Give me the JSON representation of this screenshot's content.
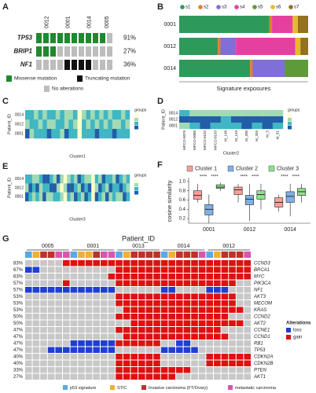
{
  "chart_data": [
    {
      "type": "mutation-grid",
      "label": "A",
      "column_groups": [
        "0012",
        "0001",
        "0014",
        "0005"
      ],
      "group_sizes": [
        3,
        3,
        3,
        2
      ],
      "genes": [
        "TP53",
        "BRIP1",
        "NF1"
      ],
      "values": [
        91,
        27,
        36
      ],
      "value_labels": [
        "91%",
        "27%",
        "36%"
      ],
      "matrix": [
        [
          1,
          1,
          1,
          1,
          1,
          1,
          1,
          1,
          1,
          1,
          0
        ],
        [
          1,
          1,
          1,
          0,
          0,
          0,
          0,
          0,
          0,
          0,
          0
        ],
        [
          0,
          0,
          0,
          0,
          2,
          2,
          2,
          2,
          0,
          0,
          0
        ]
      ],
      "legend": [
        "Missense mutation",
        "Truncating mutation",
        "No alterations"
      ],
      "colors": [
        "#bdbdbd",
        "#1e8a2e",
        "#111111"
      ]
    },
    {
      "type": "stacked-bar-h",
      "label": "B",
      "categories": [
        "0001",
        "0012",
        "0014"
      ],
      "series": [
        {
          "name": "s1",
          "color": "#2e9a5a",
          "values": [
            0.7,
            0.3,
            0.55
          ]
        },
        {
          "name": "s2",
          "color": "#e0802a",
          "values": [
            0.02,
            0.02,
            0.02
          ]
        },
        {
          "name": "s3",
          "color": "#7f6fd6",
          "values": [
            0,
            0.12,
            0.25
          ]
        },
        {
          "name": "s4",
          "color": "#e53fa0",
          "values": [
            0.16,
            0.46,
            0
          ]
        },
        {
          "name": "s5",
          "color": "#5e9a3a",
          "values": [
            0,
            0,
            0.18
          ]
        },
        {
          "name": "s6",
          "color": "#e8b92e",
          "values": [
            0.04,
            0.04,
            0
          ]
        },
        {
          "name": "s7",
          "color": "#94701f",
          "values": [
            0.08,
            0.06,
            0
          ]
        }
      ],
      "xlabel": "Signature exposures",
      "xlim": [
        0,
        1
      ]
    },
    {
      "type": "heatmap",
      "label": "C",
      "rows": [
        "0014",
        "0012",
        "0001"
      ],
      "ylabel": "Patient_ID",
      "xlabel": "Cluster1",
      "legend_title": "groups",
      "colors": [
        "#ffffcc",
        "#a1dab4",
        "#41b6c4",
        "#225ea8"
      ],
      "values": [
        [
          3,
          3,
          2,
          3,
          2,
          3,
          3,
          2,
          3,
          2,
          2,
          3,
          1,
          2,
          3,
          2,
          3,
          2,
          3,
          2,
          3,
          3,
          2,
          3
        ],
        [
          2,
          3,
          3,
          2,
          3,
          2,
          2,
          3,
          3,
          2,
          3,
          2,
          1,
          3,
          2,
          3,
          2,
          3,
          2,
          3,
          2,
          2,
          3,
          2
        ],
        [
          4,
          2,
          3,
          3,
          3,
          4,
          3,
          3,
          2,
          4,
          3,
          3,
          1,
          3,
          3,
          3,
          4,
          3,
          3,
          3,
          4,
          3,
          3,
          3
        ]
      ]
    },
    {
      "type": "heatmap",
      "label": "D",
      "rows": [
        "0014",
        "0012",
        "0001"
      ],
      "columns": [
        "MPCO-0079",
        "MPCO-0080",
        "MPCO-0102",
        "MPCO-0103",
        "M_148",
        "M_149",
        "M_200",
        "M_203",
        "M_5",
        "M_81"
      ],
      "ylabel": "Patient_ID",
      "xlabel": "Cluster2",
      "legend_title": "groups",
      "colors": [
        "#ffffcc",
        "#a1dab4",
        "#41b6c4",
        "#225ea8"
      ],
      "values": [
        [
          3,
          2,
          2,
          2,
          2,
          2,
          2,
          2,
          2,
          2
        ],
        [
          4,
          4,
          4,
          4,
          3,
          4,
          4,
          4,
          4,
          4
        ],
        [
          2,
          3,
          4,
          3,
          3,
          3,
          4,
          3,
          4,
          3
        ]
      ]
    },
    {
      "type": "heatmap",
      "label": "E",
      "rows": [
        "0014",
        "0012",
        "0001"
      ],
      "ylabel": "Patient_ID",
      "xlabel": "Cluster3",
      "legend_title": "groups",
      "colors": [
        "#ffffcc",
        "#a1dab4",
        "#41b6c4",
        "#225ea8"
      ],
      "values": [
        [
          3,
          3,
          2,
          2,
          3,
          4,
          4,
          3,
          2,
          4,
          2,
          1,
          2,
          3,
          2,
          4,
          3,
          2,
          2,
          1,
          3,
          2,
          4,
          3,
          3,
          2,
          4,
          3,
          2,
          3
        ],
        [
          2,
          4,
          3,
          4,
          2,
          3,
          3,
          4,
          4,
          2,
          1,
          2,
          4,
          4,
          3,
          2,
          4,
          3,
          4,
          1,
          2,
          4,
          3,
          2,
          4,
          3,
          3,
          4,
          3,
          2
        ],
        [
          4,
          3,
          2,
          3,
          2,
          4,
          2,
          2,
          3,
          3,
          2,
          1,
          3,
          2,
          4,
          3,
          2,
          4,
          3,
          1,
          4,
          3,
          2,
          4,
          2,
          3,
          2,
          2,
          4,
          3
        ]
      ]
    },
    {
      "type": "box",
      "label": "F",
      "categories": [
        "0001",
        "0012",
        "0014"
      ],
      "series": [
        {
          "name": "Cluster 1",
          "color": "#f4a09a",
          "values": [
            [
              0.55,
              0.62,
              0.7,
              0.8,
              0.95
            ],
            [
              0.55,
              0.72,
              0.82,
              0.88,
              0.95
            ],
            [
              0.35,
              0.45,
              0.55,
              0.65,
              0.72
            ]
          ]
        },
        {
          "name": "Cluster 2",
          "color": "#7fb0e6",
          "values": [
            [
              0.1,
              0.28,
              0.4,
              0.5,
              0.72
            ],
            [
              0.15,
              0.5,
              0.62,
              0.7,
              0.95
            ],
            [
              0.25,
              0.55,
              0.68,
              0.78,
              0.95
            ]
          ]
        },
        {
          "name": "Cluster 3",
          "color": "#8fe08f",
          "values": [
            [
              0.8,
              0.85,
              0.88,
              0.93,
              0.98
            ],
            [
              0.4,
              0.62,
              0.72,
              0.8,
              0.95
            ],
            [
              0.55,
              0.7,
              0.78,
              0.85,
              0.95
            ]
          ]
        }
      ],
      "ylabel": "cosine similarity",
      "ylim": [
        0.1,
        1.05
      ],
      "yticks": [
        0.2,
        0.4,
        0.6,
        0.8,
        {
          "value": 1,
          "label": "1.0"
        }
      ],
      "annotations": [
        "****",
        "****",
        "****",
        "****",
        "****",
        "****"
      ]
    },
    {
      "type": "oncoprint",
      "label": "G",
      "title": "Patient_ID",
      "groups": [
        "0005",
        "0001",
        "0013",
        "0014",
        "0012"
      ],
      "group_sizes": [
        6,
        6,
        6,
        6,
        6
      ],
      "genes": [
        "CCND3",
        "BRCA1",
        "MYC",
        "PIK3CA",
        "NF1",
        "AKT3",
        "MECOM",
        "KRAS",
        "CCND2",
        "AKT2",
        "CCNE1",
        "CCND1",
        "RB1",
        "TP53",
        "CDKN2A",
        "CDKN2B",
        "PTEN",
        "AKT1"
      ],
      "values": [
        83,
        67,
        63,
        57,
        57,
        53,
        53,
        53,
        50,
        50,
        47,
        47,
        47,
        47,
        40,
        40,
        33,
        27
      ],
      "value_labels": [
        "83%",
        "67%",
        "63%",
        "57%",
        "57%",
        "53%",
        "53%",
        "53%",
        "50%",
        "50%",
        "47%",
        "47%",
        "47%",
        "47%",
        "40%",
        "40%",
        "33%",
        "27%"
      ],
      "matrix": [
        [
          0,
          0,
          0,
          0,
          0,
          2,
          2,
          2,
          2,
          2,
          2,
          2,
          2,
          2,
          2,
          2,
          2,
          2,
          2,
          2,
          2,
          2,
          2,
          2,
          2,
          2,
          2,
          2,
          2,
          2
        ],
        [
          1,
          1,
          0,
          0,
          0,
          0,
          0,
          0,
          0,
          0,
          0,
          0,
          2,
          2,
          2,
          2,
          2,
          2,
          2,
          2,
          2,
          2,
          2,
          2,
          2,
          2,
          2,
          2,
          2,
          2
        ],
        [
          0,
          0,
          0,
          0,
          0,
          0,
          0,
          0,
          0,
          0,
          0,
          2,
          2,
          2,
          2,
          2,
          2,
          2,
          2,
          2,
          2,
          2,
          2,
          2,
          2,
          2,
          2,
          2,
          2,
          2
        ],
        [
          0,
          0,
          0,
          0,
          0,
          2,
          0,
          0,
          0,
          0,
          0,
          0,
          2,
          2,
          2,
          2,
          2,
          2,
          2,
          2,
          2,
          2,
          2,
          2,
          2,
          2,
          2,
          2,
          0,
          0
        ],
        [
          1,
          1,
          1,
          1,
          1,
          1,
          1,
          1,
          1,
          1,
          1,
          1,
          0,
          0,
          0,
          0,
          0,
          0,
          1,
          1,
          0,
          0,
          0,
          0,
          1,
          1,
          1,
          0,
          0,
          0
        ],
        [
          0,
          0,
          0,
          0,
          0,
          0,
          0,
          0,
          0,
          0,
          0,
          0,
          2,
          2,
          2,
          2,
          2,
          2,
          2,
          2,
          2,
          2,
          2,
          2,
          2,
          2,
          2,
          2,
          0,
          0
        ],
        [
          0,
          0,
          0,
          0,
          0,
          0,
          0,
          0,
          0,
          0,
          0,
          0,
          2,
          2,
          2,
          2,
          2,
          2,
          2,
          2,
          2,
          2,
          2,
          2,
          2,
          2,
          2,
          2,
          0,
          0
        ],
        [
          0,
          0,
          0,
          0,
          0,
          0,
          0,
          0,
          0,
          0,
          0,
          0,
          0,
          2,
          2,
          2,
          2,
          2,
          2,
          2,
          2,
          2,
          2,
          2,
          2,
          2,
          2,
          2,
          2,
          0
        ],
        [
          0,
          0,
          0,
          0,
          0,
          0,
          0,
          0,
          0,
          0,
          0,
          0,
          2,
          2,
          2,
          2,
          2,
          2,
          2,
          2,
          2,
          2,
          2,
          2,
          2,
          2,
          2,
          0,
          0,
          0
        ],
        [
          0,
          0,
          0,
          0,
          0,
          0,
          0,
          0,
          0,
          0,
          0,
          0,
          0,
          0,
          2,
          2,
          2,
          2,
          2,
          2,
          2,
          2,
          2,
          2,
          2,
          2,
          2,
          2,
          2,
          0
        ],
        [
          0,
          0,
          0,
          0,
          0,
          0,
          0,
          0,
          0,
          0,
          0,
          0,
          2,
          2,
          2,
          2,
          2,
          2,
          2,
          2,
          2,
          2,
          2,
          2,
          2,
          2,
          0,
          0,
          0,
          0
        ],
        [
          0,
          0,
          0,
          0,
          0,
          0,
          0,
          0,
          0,
          0,
          0,
          0,
          0,
          2,
          2,
          2,
          2,
          2,
          2,
          2,
          2,
          2,
          2,
          2,
          2,
          2,
          2,
          0,
          0,
          0
        ],
        [
          0,
          0,
          0,
          0,
          0,
          0,
          1,
          1,
          1,
          1,
          1,
          1,
          2,
          2,
          2,
          2,
          2,
          2,
          0,
          0,
          1,
          1,
          0,
          0,
          0,
          0,
          0,
          0,
          0,
          0
        ],
        [
          0,
          0,
          0,
          1,
          1,
          1,
          1,
          1,
          1,
          1,
          1,
          1,
          0,
          0,
          0,
          0,
          0,
          0,
          1,
          1,
          1,
          1,
          1,
          0,
          0,
          0,
          0,
          0,
          0,
          0
        ],
        [
          0,
          0,
          0,
          0,
          0,
          0,
          0,
          0,
          0,
          0,
          0,
          0,
          2,
          2,
          2,
          2,
          2,
          2,
          0,
          0,
          0,
          0,
          0,
          0,
          2,
          2,
          2,
          2,
          2,
          2
        ],
        [
          0,
          0,
          0,
          0,
          0,
          0,
          0,
          0,
          0,
          0,
          0,
          0,
          2,
          2,
          2,
          2,
          2,
          2,
          0,
          0,
          0,
          0,
          0,
          0,
          2,
          2,
          2,
          2,
          2,
          2
        ],
        [
          0,
          0,
          0,
          0,
          0,
          0,
          0,
          0,
          0,
          0,
          0,
          0,
          2,
          2,
          2,
          2,
          2,
          2,
          2,
          2,
          2,
          2,
          0,
          0,
          0,
          0,
          0,
          0,
          0,
          0
        ],
        [
          0,
          0,
          0,
          0,
          0,
          0,
          0,
          0,
          0,
          0,
          0,
          0,
          2,
          2,
          2,
          2,
          2,
          2,
          2,
          2,
          0,
          0,
          0,
          0,
          0,
          0,
          0,
          0,
          0,
          0
        ]
      ],
      "cell_colors": [
        "#c8c8c8",
        "#1f3fd1",
        "#e01010"
      ],
      "alteration_title": "Alterations",
      "alteration_names": [
        "loss",
        "gain"
      ],
      "sample_types": [
        "p53 signature",
        "STIC",
        "Invasive carcinoma (FT/Ovary)",
        "metastatic carcinoma"
      ],
      "sample_type_colors": [
        "#5aa9e6",
        "#f0b030",
        "#c0302a",
        "#d955b0"
      ],
      "column_types": [
        0,
        1,
        2,
        2,
        3,
        3,
        0,
        1,
        1,
        2,
        3,
        3,
        0,
        1,
        2,
        2,
        2,
        2,
        0,
        1,
        2,
        2,
        2,
        3,
        0,
        1,
        2,
        2,
        2,
        3
      ]
    }
  ]
}
